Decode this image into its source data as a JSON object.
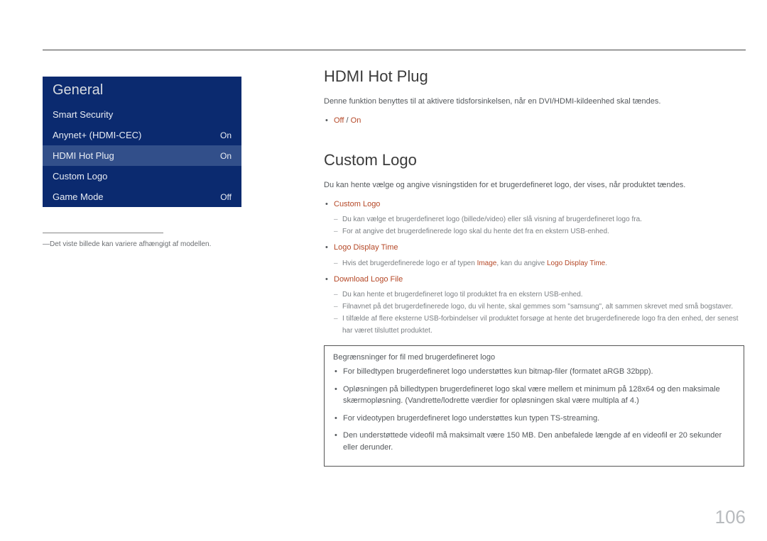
{
  "menu": {
    "title": "General",
    "items": [
      {
        "label": "Smart Security",
        "value": ""
      },
      {
        "label": "Anynet+ (HDMI-CEC)",
        "value": "On"
      },
      {
        "label": "HDMI Hot Plug",
        "value": "On",
        "selected": true
      },
      {
        "label": "Custom Logo",
        "value": ""
      },
      {
        "label": "Game Mode",
        "value": "Off"
      }
    ]
  },
  "footnote": "Det viste billede kan variere afhængigt af modellen.",
  "hdmi": {
    "heading": "HDMI Hot Plug",
    "desc": "Denne funktion benyttes til at aktivere tidsforsinkelsen, når en DVI/HDMI-kildeenhed skal tændes.",
    "options_off": "Off",
    "options_sep": " / ",
    "options_on": "On"
  },
  "logo": {
    "heading": "Custom Logo",
    "desc": "Du kan hente vælge og angive visningstiden for et brugerdefineret logo, der vises, når produktet tændes.",
    "item1": "Custom Logo",
    "item1_sub1": "Du kan vælge et brugerdefineret logo (billede/video) eller slå visning af brugerdefineret logo fra.",
    "item1_sub2": "For at angive det brugerdefinerede logo skal du hente det fra en ekstern USB-enhed.",
    "item2": "Logo Display Time",
    "item2_sub1_a": "Hvis det brugerdefinerede logo er af typen ",
    "item2_sub1_b": "Image",
    "item2_sub1_c": ", kan du angive ",
    "item2_sub1_d": "Logo Display Time",
    "item2_sub1_e": ".",
    "item3": "Download Logo File",
    "item3_sub1": "Du kan hente et brugerdefineret logo til produktet fra en ekstern USB-enhed.",
    "item3_sub2": "Filnavnet på det brugerdefinerede logo, du vil hente, skal gemmes som \"samsung\", alt sammen skrevet med små bogstaver.",
    "item3_sub3": "I tilfælde af flere eksterne USB-forbindelser vil produktet forsøge at hente det brugerdefinerede logo fra den enhed, der senest har været tilsluttet produktet."
  },
  "limits": {
    "title": "Begrænsninger for fil med brugerdefineret logo",
    "l1": "For billedtypen brugerdefineret logo understøttes kun bitmap-filer (formatet aRGB 32bpp).",
    "l2": "Opløsningen på billedtypen brugerdefineret logo skal være mellem et minimum på 128x64 og den maksimale skærmopløsning. (Vandrette/lodrette værdier for opløsningen skal være multipla af 4.)",
    "l3": "For videotypen brugerdefineret logo understøttes kun typen TS-streaming.",
    "l4": "Den understøttede videofil må maksimalt være 150 MB. Den anbefalede længde af en videofil er 20 sekunder eller derunder."
  },
  "page": "106"
}
